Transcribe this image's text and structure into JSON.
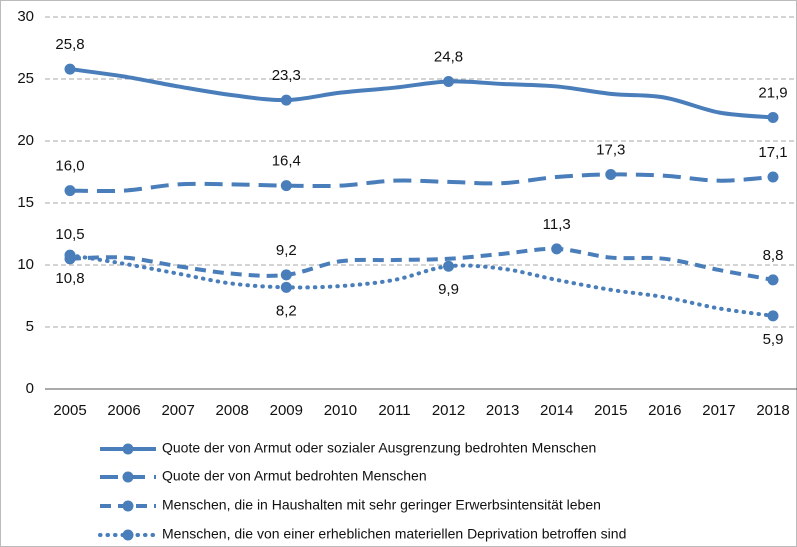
{
  "chart_data": {
    "type": "line",
    "categories": [
      "2005",
      "2006",
      "2007",
      "2008",
      "2009",
      "2010",
      "2011",
      "2012",
      "2013",
      "2014",
      "2015",
      "2016",
      "2017",
      "2018"
    ],
    "ylim": [
      0,
      30
    ],
    "yticks": [
      0,
      5,
      10,
      15,
      20,
      25,
      30
    ],
    "grid": true,
    "legend": "bottom",
    "series": [
      {
        "name": "Quote der von Armut oder sozialer Ausgrenzung bedrohten Menschen",
        "color": "#4a7ebb",
        "style": "solid",
        "values": [
          25.8,
          25.2,
          24.4,
          23.7,
          23.3,
          23.9,
          24.3,
          24.8,
          24.6,
          24.4,
          23.8,
          23.5,
          22.3,
          21.9
        ],
        "value_labels": [
          "25,8",
          null,
          null,
          null,
          "23,3",
          null,
          null,
          "24,8",
          null,
          null,
          null,
          null,
          null,
          "21,9"
        ]
      },
      {
        "name": "Quote der von Armut bedrohten Menschen",
        "color": "#4a7ebb",
        "style": "longdash",
        "values": [
          16.0,
          16.0,
          16.5,
          16.5,
          16.4,
          16.4,
          16.8,
          16.7,
          16.6,
          17.1,
          17.3,
          17.2,
          16.8,
          17.1
        ],
        "value_labels": [
          "16,0",
          null,
          null,
          null,
          "16,4",
          null,
          null,
          null,
          null,
          null,
          "17,3",
          null,
          null,
          "17,1"
        ]
      },
      {
        "name": "Menschen, die in Haushalten mit sehr geringer Erwerbsintensität leben",
        "color": "#4a7ebb",
        "style": "dash",
        "values": [
          10.5,
          10.6,
          9.9,
          9.3,
          9.2,
          10.3,
          10.4,
          10.5,
          10.9,
          11.3,
          10.6,
          10.5,
          9.6,
          8.8
        ],
        "value_labels": [
          "10,5",
          null,
          null,
          null,
          "9,2",
          null,
          null,
          null,
          null,
          "11,3",
          null,
          null,
          null,
          "8,8"
        ]
      },
      {
        "name": "Menschen, die von einer erheblichen materiellen Deprivation betroffen sind",
        "color": "#4a7ebb",
        "style": "dotted",
        "values": [
          10.8,
          10.1,
          9.3,
          8.5,
          8.2,
          8.3,
          8.8,
          9.9,
          9.7,
          8.8,
          8.0,
          7.4,
          6.5,
          5.9
        ],
        "value_labels": [
          "10,8",
          null,
          null,
          null,
          "8,2",
          null,
          null,
          "9,9",
          null,
          null,
          null,
          null,
          null,
          "5,9"
        ]
      }
    ]
  }
}
